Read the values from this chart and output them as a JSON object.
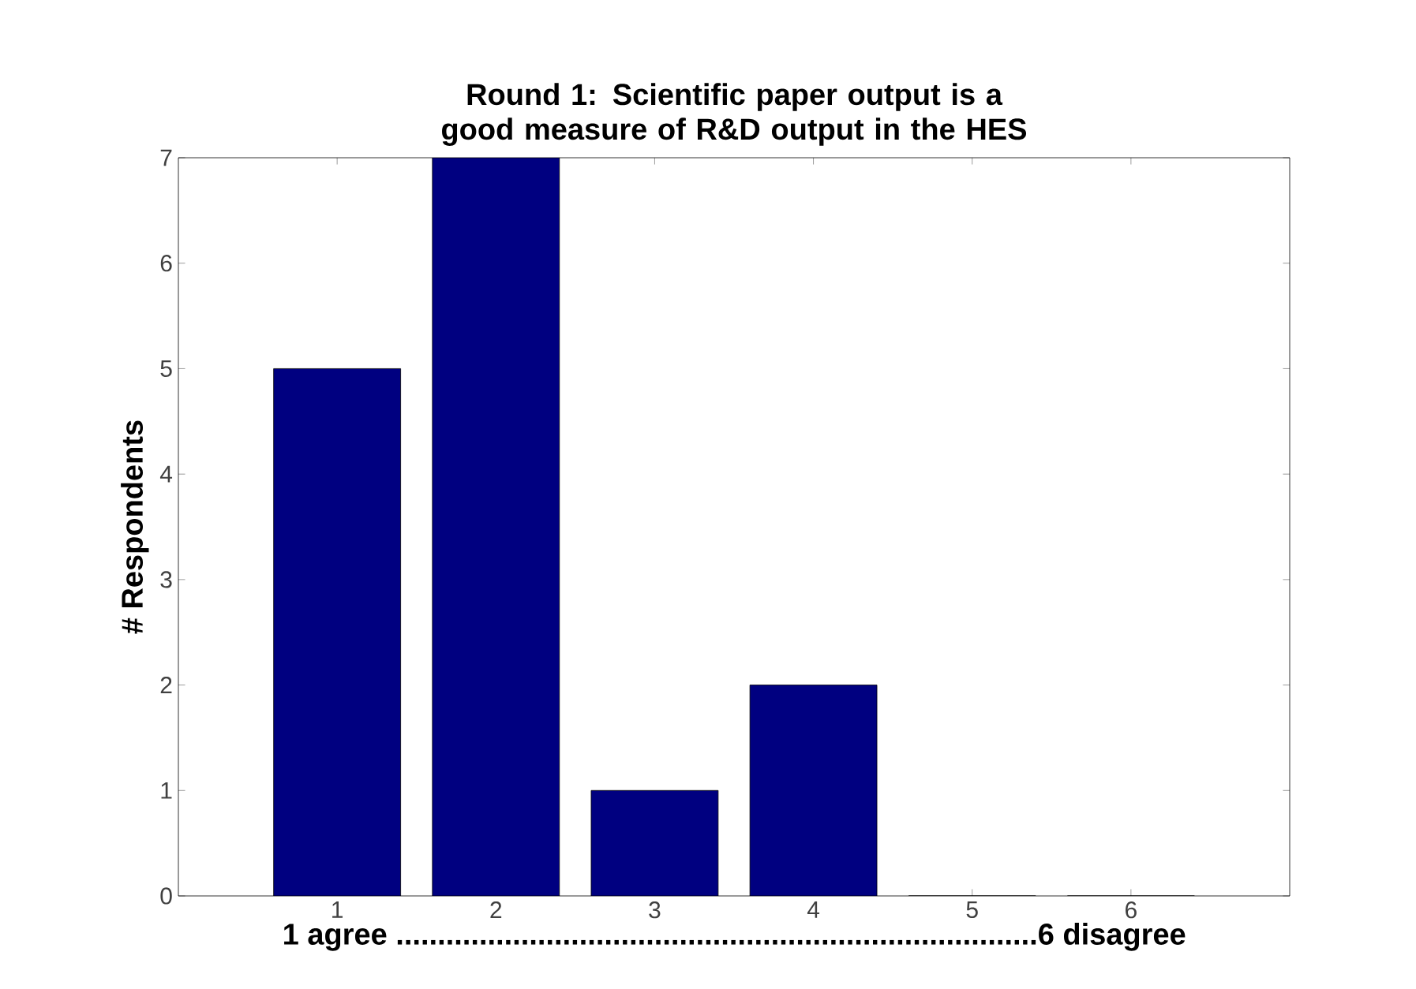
{
  "chart_data": {
    "type": "bar",
    "title": "Round 1: Scientific paper output is a good measure of R&D output in the HES",
    "xlabel": "1 agree .............................................................................6 disagree",
    "ylabel": "# Respondents",
    "categories": [
      "1",
      "2",
      "3",
      "4",
      "5",
      "6"
    ],
    "values": [
      5,
      7,
      1,
      2,
      0,
      0
    ],
    "color": "#000080",
    "ylim": [
      0,
      7
    ],
    "yticks": [
      0,
      1,
      2,
      3,
      4,
      5,
      6,
      7
    ],
    "grid": false
  }
}
